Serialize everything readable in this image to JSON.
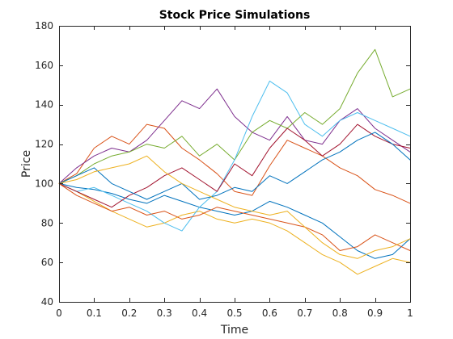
{
  "chart_data": {
    "type": "line",
    "title": "Stock Price Simulations",
    "xlabel": "Time",
    "ylabel": "Price",
    "xlim": [
      0,
      1
    ],
    "ylim": [
      40,
      180
    ],
    "grid": false,
    "legend": "none",
    "x_ticks": [
      0,
      0.1,
      0.2,
      0.3,
      0.4,
      0.5,
      0.6,
      0.7,
      0.8,
      0.9,
      1
    ],
    "x_tick_labels": [
      "0",
      "0.1",
      "0.2",
      "0.3",
      "0.4",
      "0.5",
      "0.6",
      "0.7",
      "0.8",
      "0.9",
      "1"
    ],
    "y_ticks": [
      40,
      60,
      80,
      100,
      120,
      140,
      160,
      180
    ],
    "y_tick_labels": [
      "40",
      "60",
      "80",
      "100",
      "120",
      "140",
      "160",
      "180"
    ],
    "series": [
      {
        "color": "#0072BD",
        "x": [
          0,
          0.05,
          0.1,
          0.15,
          0.2,
          0.25,
          0.3,
          0.35,
          0.4,
          0.45,
          0.5,
          0.55,
          0.6,
          0.65,
          0.7,
          0.75,
          0.8,
          0.85,
          0.9,
          0.95,
          1.0
        ],
        "y": [
          100,
          98,
          97,
          95,
          92,
          90,
          94,
          91,
          88,
          86,
          84,
          86,
          91,
          88,
          84,
          80,
          73,
          66,
          62,
          64,
          72
        ]
      },
      {
        "color": "#D95319",
        "x": [
          0,
          0.05,
          0.1,
          0.15,
          0.2,
          0.25,
          0.3,
          0.35,
          0.4,
          0.45,
          0.5,
          0.55,
          0.6,
          0.65,
          0.7,
          0.75,
          0.8,
          0.85,
          0.9,
          0.95,
          1.0
        ],
        "y": [
          100,
          105,
          118,
          124,
          120,
          130,
          128,
          118,
          112,
          105,
          96,
          94,
          109,
          122,
          118,
          114,
          108,
          104,
          97,
          94,
          90
        ]
      },
      {
        "color": "#EDB120",
        "x": [
          0,
          0.05,
          0.1,
          0.15,
          0.2,
          0.25,
          0.3,
          0.35,
          0.4,
          0.45,
          0.5,
          0.55,
          0.6,
          0.65,
          0.7,
          0.75,
          0.8,
          0.85,
          0.9,
          0.95,
          1.0
        ],
        "y": [
          100,
          96,
          91,
          86,
          82,
          78,
          80,
          84,
          86,
          82,
          80,
          82,
          80,
          76,
          70,
          64,
          60,
          54,
          58,
          62,
          60
        ]
      },
      {
        "color": "#7E2F8E",
        "x": [
          0,
          0.05,
          0.1,
          0.15,
          0.2,
          0.25,
          0.3,
          0.35,
          0.4,
          0.45,
          0.5,
          0.55,
          0.6,
          0.65,
          0.7,
          0.75,
          0.8,
          0.85,
          0.9,
          0.95,
          1.0
        ],
        "y": [
          100,
          108,
          114,
          118,
          116,
          122,
          132,
          142,
          138,
          148,
          134,
          126,
          122,
          134,
          122,
          120,
          132,
          138,
          128,
          122,
          116
        ]
      },
      {
        "color": "#77AC30",
        "x": [
          0,
          0.05,
          0.1,
          0.15,
          0.2,
          0.25,
          0.3,
          0.35,
          0.4,
          0.45,
          0.5,
          0.55,
          0.6,
          0.65,
          0.7,
          0.75,
          0.8,
          0.85,
          0.9,
          0.95,
          1.0
        ],
        "y": [
          100,
          104,
          110,
          114,
          116,
          120,
          118,
          124,
          114,
          120,
          112,
          126,
          132,
          128,
          136,
          130,
          138,
          156,
          168,
          144,
          148
        ]
      },
      {
        "color": "#4DBEEE",
        "x": [
          0,
          0.05,
          0.1,
          0.15,
          0.2,
          0.25,
          0.3,
          0.35,
          0.4,
          0.45,
          0.5,
          0.55,
          0.6,
          0.65,
          0.7,
          0.75,
          0.8,
          0.85,
          0.9,
          0.95,
          1.0
        ],
        "y": [
          100,
          96,
          98,
          94,
          90,
          86,
          80,
          76,
          88,
          96,
          112,
          134,
          152,
          146,
          130,
          124,
          132,
          136,
          132,
          128,
          124
        ]
      },
      {
        "color": "#A2142F",
        "x": [
          0,
          0.05,
          0.1,
          0.15,
          0.2,
          0.25,
          0.3,
          0.35,
          0.4,
          0.45,
          0.5,
          0.55,
          0.6,
          0.65,
          0.7,
          0.75,
          0.8,
          0.85,
          0.9,
          0.95,
          1.0
        ],
        "y": [
          100,
          96,
          92,
          88,
          94,
          98,
          104,
          108,
          102,
          96,
          110,
          104,
          118,
          128,
          122,
          114,
          120,
          130,
          124,
          120,
          118
        ]
      },
      {
        "color": "#0072BD",
        "x": [
          0,
          0.05,
          0.1,
          0.15,
          0.2,
          0.25,
          0.3,
          0.35,
          0.4,
          0.45,
          0.5,
          0.55,
          0.6,
          0.65,
          0.7,
          0.75,
          0.8,
          0.85,
          0.9,
          0.95,
          1.0
        ],
        "y": [
          100,
          104,
          108,
          100,
          96,
          92,
          96,
          100,
          92,
          94,
          98,
          96,
          104,
          100,
          106,
          112,
          116,
          122,
          126,
          120,
          112
        ]
      },
      {
        "color": "#D95319",
        "x": [
          0,
          0.05,
          0.1,
          0.15,
          0.2,
          0.25,
          0.3,
          0.35,
          0.4,
          0.45,
          0.5,
          0.55,
          0.6,
          0.65,
          0.7,
          0.75,
          0.8,
          0.85,
          0.9,
          0.95,
          1.0
        ],
        "y": [
          100,
          94,
          90,
          86,
          88,
          84,
          86,
          82,
          84,
          88,
          86,
          84,
          82,
          80,
          78,
          74,
          66,
          68,
          74,
          70,
          66
        ]
      },
      {
        "color": "#EDB120",
        "x": [
          0,
          0.05,
          0.1,
          0.15,
          0.2,
          0.25,
          0.3,
          0.35,
          0.4,
          0.45,
          0.5,
          0.55,
          0.6,
          0.65,
          0.7,
          0.75,
          0.8,
          0.85,
          0.9,
          0.95,
          1.0
        ],
        "y": [
          100,
          102,
          106,
          108,
          110,
          114,
          106,
          100,
          96,
          92,
          88,
          86,
          84,
          86,
          78,
          70,
          64,
          62,
          66,
          68,
          72
        ]
      }
    ]
  }
}
